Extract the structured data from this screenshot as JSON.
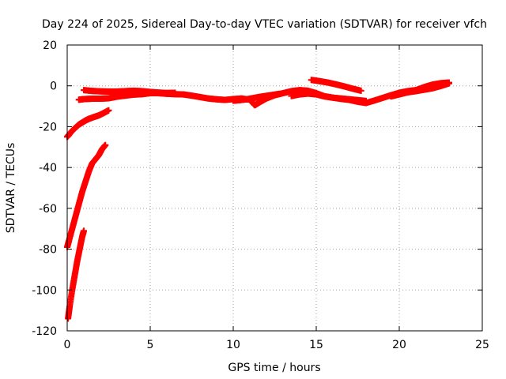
{
  "chart_data": {
    "type": "scatter",
    "title": "Day 224 of 2025, Sidereal Day-to-day VTEC variation (SDTVAR) for receiver vfch",
    "xlabel": "GPS time / hours",
    "ylabel": "SDTVAR / TECUs",
    "xlim": [
      0,
      25
    ],
    "ylim": [
      -120,
      20
    ],
    "xticks": [
      0,
      5,
      10,
      15,
      20,
      25
    ],
    "yticks": [
      20,
      0,
      -20,
      -40,
      -60,
      -80,
      -100,
      -120
    ],
    "grid": true,
    "legend": "none",
    "marker": "plus",
    "series": [
      {
        "color": "#ff0000",
        "tracks": [
          {
            "x": [
              0.0,
              0.1,
              0.3,
              0.5,
              0.7,
              0.9,
              1.1,
              1.3,
              1.6,
              1.9,
              2.2,
              2.5
            ],
            "y": [
              -25,
              -24,
              -22,
              -20.5,
              -19,
              -18,
              -17,
              -16.2,
              -15.3,
              -14.5,
              -13.3,
              -12
            ]
          },
          {
            "x": [
              0.0,
              0.1,
              0.3,
              0.5,
              0.7,
              0.9,
              1.1,
              1.3,
              1.5,
              1.7,
              1.9,
              2.1,
              2.3
            ],
            "y": [
              -79,
              -76,
              -70,
              -64,
              -58,
              -52,
              -47,
              -42,
              -38,
              -36,
              -34,
              -31,
              -29
            ]
          },
          {
            "x": [
              0.05,
              0.15,
              0.3,
              0.45,
              0.6,
              0.75,
              0.9,
              1.0
            ],
            "y": [
              -114,
              -108,
              -100,
              -93,
              -86,
              -80,
              -74,
              -71
            ]
          },
          {
            "x": [
              0.7,
              1.0,
              1.5,
              2.0,
              2.5,
              3.0,
              3.5,
              4.0,
              4.5,
              5.0,
              5.5,
              6.0,
              6.5,
              7.0
            ],
            "y": [
              -6.8,
              -6.5,
              -6.3,
              -6.3,
              -6.1,
              -5.3,
              -4.8,
              -4.3,
              -4.1,
              -3.6,
              -3.6,
              -3.9,
              -4.1,
              -4.2
            ]
          },
          {
            "x": [
              1.0,
              1.5,
              2.0,
              2.5,
              3.0,
              3.5,
              4.0,
              4.5,
              5.0,
              5.5,
              6.0,
              6.5
            ],
            "y": [
              -2.1,
              -2.5,
              -2.7,
              -2.8,
              -2.8,
              -2.6,
              -2.4,
              -2.6,
              -3.0,
              -3.3,
              -3.5,
              -3.4
            ]
          },
          {
            "x": [
              7.0,
              7.5,
              8.0,
              8.5,
              9.0,
              9.5,
              10.0,
              10.5,
              11.0,
              11.3,
              11.6,
              12.0,
              12.5,
              13.0,
              13.5,
              14.0,
              14.5,
              15.0,
              15.5,
              16.0,
              16.5,
              17.0,
              17.5,
              18.0,
              18.5,
              19.0,
              19.5,
              20.0,
              20.5,
              21.0,
              21.5,
              22.0,
              22.5,
              23.0
            ],
            "y": [
              -4.2,
              -4.8,
              -5.5,
              -6.2,
              -6.6,
              -6.9,
              -6.5,
              -6.2,
              -6.8,
              -9.5,
              -8.0,
              -6.2,
              -4.6,
              -3.6,
              -2.6,
              -2.1,
              -2.4,
              -3.6,
              -5.1,
              -5.8,
              -6.4,
              -6.9,
              -7.8,
              -8.4,
              -7.2,
              -5.9,
              -4.6,
              -3.4,
              -2.6,
              -2.1,
              -0.6,
              0.6,
              1.3,
              1.6
            ]
          },
          {
            "x": [
              10.0,
              10.4,
              10.8,
              11.2,
              11.6,
              12.0,
              12.4,
              12.8
            ],
            "y": [
              -7.3,
              -7.0,
              -6.6,
              -6.0,
              -5.4,
              -4.9,
              -4.4,
              -3.9
            ]
          },
          {
            "x": [
              13.5,
              14.0,
              14.5,
              15.0,
              15.5,
              16.0,
              16.5,
              17.0,
              17.5,
              18.0
            ],
            "y": [
              -5.0,
              -4.2,
              -3.8,
              -4.2,
              -5.2,
              -5.8,
              -6.2,
              -6.6,
              -7.0,
              -7.4
            ]
          },
          {
            "x": [
              14.7,
              15.2,
              15.7,
              16.2,
              16.7,
              17.2,
              17.7
            ],
            "y": [
              2.9,
              2.3,
              1.6,
              0.7,
              -0.3,
              -1.4,
              -2.4
            ]
          },
          {
            "x": [
              19.5,
              20.0,
              20.5,
              21.0,
              21.5,
              22.0,
              22.5,
              23.0
            ],
            "y": [
              -5.2,
              -4.2,
              -3.2,
              -2.6,
              -1.9,
              -1.2,
              -0.1,
              1.2
            ]
          }
        ]
      }
    ]
  }
}
